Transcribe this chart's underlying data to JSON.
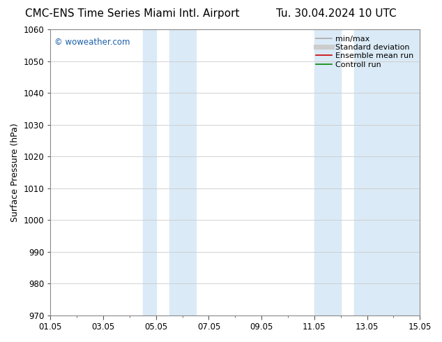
{
  "title_left": "CMC-ENS Time Series Miami Intl. Airport",
  "title_right": "Tu. 30.04.2024 10 UTC",
  "ylabel": "Surface Pressure (hPa)",
  "ylim": [
    970,
    1060
  ],
  "yticks": [
    970,
    980,
    990,
    1000,
    1010,
    1020,
    1030,
    1040,
    1050,
    1060
  ],
  "xlim": [
    0,
    14
  ],
  "xtick_labels": [
    "01.05",
    "03.05",
    "05.05",
    "07.05",
    "09.05",
    "11.05",
    "13.05",
    "15.05"
  ],
  "xtick_positions": [
    0,
    2,
    4,
    6,
    8,
    10,
    12,
    14
  ],
  "shaded_bands": [
    {
      "x_start": 3.5,
      "x_end": 4.0
    },
    {
      "x_start": 4.5,
      "x_end": 5.5
    },
    {
      "x_start": 10.0,
      "x_end": 11.0
    },
    {
      "x_start": 11.5,
      "x_end": 14.0
    }
  ],
  "shaded_color": "#daeaf6",
  "background_color": "#ffffff",
  "watermark": "© woweather.com",
  "watermark_color": "#1a5fa8",
  "legend_items": [
    {
      "label": "min/max",
      "color": "#aaaaaa",
      "lw": 1.2,
      "ls": "-"
    },
    {
      "label": "Standard deviation",
      "color": "#cccccc",
      "lw": 5,
      "ls": "-"
    },
    {
      "label": "Ensemble mean run",
      "color": "#cc0000",
      "lw": 1.2,
      "ls": "-"
    },
    {
      "label": "Controll run",
      "color": "#008800",
      "lw": 1.2,
      "ls": "-"
    }
  ],
  "grid_color": "#cccccc",
  "title_fontsize": 11,
  "ylabel_fontsize": 9,
  "tick_fontsize": 8.5,
  "legend_fontsize": 8
}
